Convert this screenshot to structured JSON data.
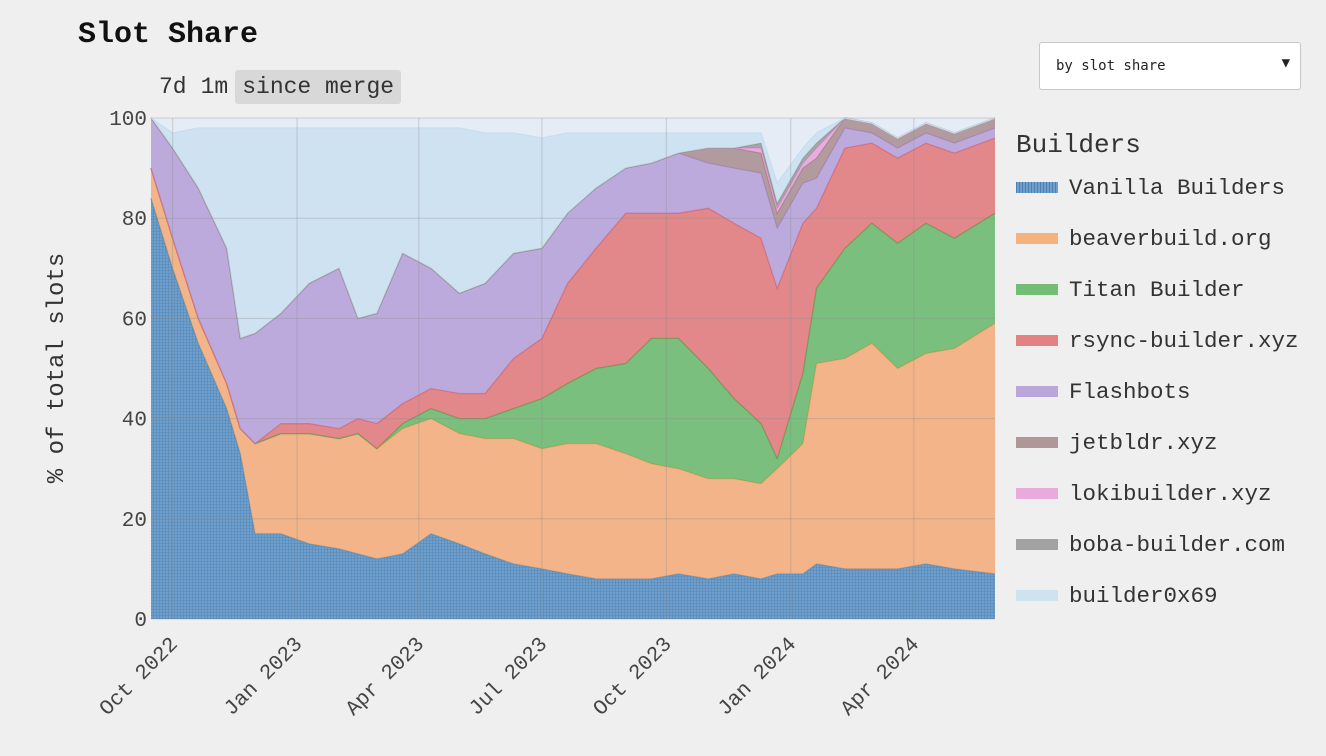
{
  "title": "Slot Share",
  "range_buttons": [
    "7d",
    "1m",
    "since merge"
  ],
  "active_range": 2,
  "sort_select": {
    "value": "by slot share"
  },
  "legend_title": "Builders",
  "chart_data": {
    "type": "area",
    "stacked": true,
    "ylabel": "% of total slots",
    "xlabel": "",
    "ylim": [
      0,
      100
    ],
    "yticks": [
      0,
      20,
      40,
      60,
      80,
      100
    ],
    "xlim": [
      "2022-09-15",
      "2024-05-31"
    ],
    "xticks": [
      {
        "date": "2022-10-01",
        "label": "Oct 2022"
      },
      {
        "date": "2023-01-01",
        "label": "Jan 2023"
      },
      {
        "date": "2023-04-01",
        "label": "Apr 2023"
      },
      {
        "date": "2023-07-01",
        "label": "Jul 2023"
      },
      {
        "date": "2023-10-01",
        "label": "Oct 2023"
      },
      {
        "date": "2024-01-01",
        "label": "Jan 2024"
      },
      {
        "date": "2024-04-01",
        "label": "Apr 2024"
      }
    ],
    "grid": true,
    "legend_position": "right",
    "x": [
      "2022-09-15",
      "2022-10-01",
      "2022-10-20",
      "2022-11-10",
      "2022-11-20",
      "2022-12-01",
      "2022-12-20",
      "2023-01-10",
      "2023-02-01",
      "2023-02-15",
      "2023-03-01",
      "2023-03-20",
      "2023-04-10",
      "2023-05-01",
      "2023-05-20",
      "2023-06-10",
      "2023-07-01",
      "2023-07-20",
      "2023-08-10",
      "2023-09-01",
      "2023-09-20",
      "2023-10-10",
      "2023-11-01",
      "2023-11-20",
      "2023-12-10",
      "2023-12-22",
      "2024-01-10",
      "2024-01-20",
      "2024-02-10",
      "2024-03-01",
      "2024-03-20",
      "2024-04-10",
      "2024-05-01",
      "2024-05-31"
    ],
    "series": [
      {
        "name": "Vanilla Builders",
        "color": "#4e8ec2",
        "values": [
          84,
          70,
          55,
          42,
          33,
          17,
          17,
          15,
          14,
          13,
          12,
          13,
          17,
          15,
          13,
          11,
          10,
          9,
          8,
          8,
          8,
          9,
          8,
          9,
          8,
          9,
          9,
          11,
          10,
          10,
          10,
          11,
          10,
          9
        ]
      },
      {
        "name": "beaverbuild.org",
        "color": "#f5a263",
        "values": [
          6,
          6,
          5,
          5,
          5,
          18,
          20,
          22,
          22,
          24,
          22,
          25,
          23,
          22,
          23,
          25,
          24,
          26,
          27,
          25,
          23,
          21,
          20,
          19,
          19,
          21,
          26,
          40,
          42,
          45,
          40,
          42,
          44,
          50
        ]
      },
      {
        "name": "Titan Builder",
        "color": "#55b055",
        "values": [
          0,
          0,
          0,
          0,
          0,
          0,
          0,
          0,
          0,
          0,
          0,
          1,
          2,
          3,
          4,
          6,
          10,
          12,
          15,
          18,
          25,
          26,
          22,
          16,
          12,
          2,
          14,
          15,
          22,
          24,
          25,
          26,
          22,
          22
        ]
      },
      {
        "name": "rsync-builder.xyz",
        "color": "#e06666",
        "values": [
          0,
          0,
          0,
          0,
          0,
          0,
          2,
          2,
          2,
          3,
          5,
          4,
          4,
          5,
          5,
          10,
          12,
          20,
          24,
          30,
          25,
          25,
          32,
          35,
          37,
          34,
          30,
          16,
          20,
          16,
          17,
          16,
          17,
          15
        ]
      },
      {
        "name": "Flashbots",
        "color": "#ae94d4",
        "values": [
          10,
          18,
          26,
          27,
          18,
          22,
          22,
          28,
          32,
          20,
          22,
          30,
          24,
          20,
          22,
          21,
          18,
          14,
          12,
          9,
          10,
          12,
          9,
          11,
          13,
          12,
          8,
          6,
          4,
          2,
          2,
          2,
          2,
          2
        ]
      },
      {
        "name": "jetbldr.xyz",
        "color": "#a08080",
        "values": [
          0,
          0,
          0,
          0,
          0,
          0,
          0,
          0,
          0,
          0,
          0,
          0,
          0,
          0,
          0,
          0,
          0,
          0,
          0,
          0,
          0,
          0,
          3,
          4,
          4,
          3,
          3,
          4,
          2,
          2,
          2,
          2,
          2,
          2
        ]
      },
      {
        "name": "lokibuilder.xyz",
        "color": "#e69ad6",
        "values": [
          0,
          0,
          0,
          0,
          0,
          0,
          0,
          0,
          0,
          0,
          0,
          0,
          0,
          0,
          0,
          0,
          0,
          0,
          0,
          0,
          0,
          0,
          0,
          0,
          1,
          1,
          1,
          2,
          0,
          0,
          0,
          0,
          0,
          0
        ]
      },
      {
        "name": "boba-builder.com",
        "color": "#8f8f8f",
        "values": [
          0,
          0,
          0,
          0,
          0,
          0,
          0,
          0,
          0,
          0,
          0,
          0,
          0,
          0,
          0,
          0,
          0,
          0,
          0,
          0,
          0,
          0,
          0,
          0,
          1,
          1,
          1,
          1,
          0,
          0,
          0,
          0,
          0,
          0
        ]
      },
      {
        "name": "builder0x69",
        "color": "#c5dff0",
        "values": [
          0,
          3,
          12,
          24,
          42,
          41,
          37,
          31,
          28,
          38,
          37,
          25,
          28,
          33,
          30,
          24,
          22,
          16,
          11,
          7,
          6,
          4,
          3,
          3,
          2,
          4,
          2,
          2,
          0,
          0,
          0,
          0,
          0,
          0
        ]
      }
    ]
  }
}
